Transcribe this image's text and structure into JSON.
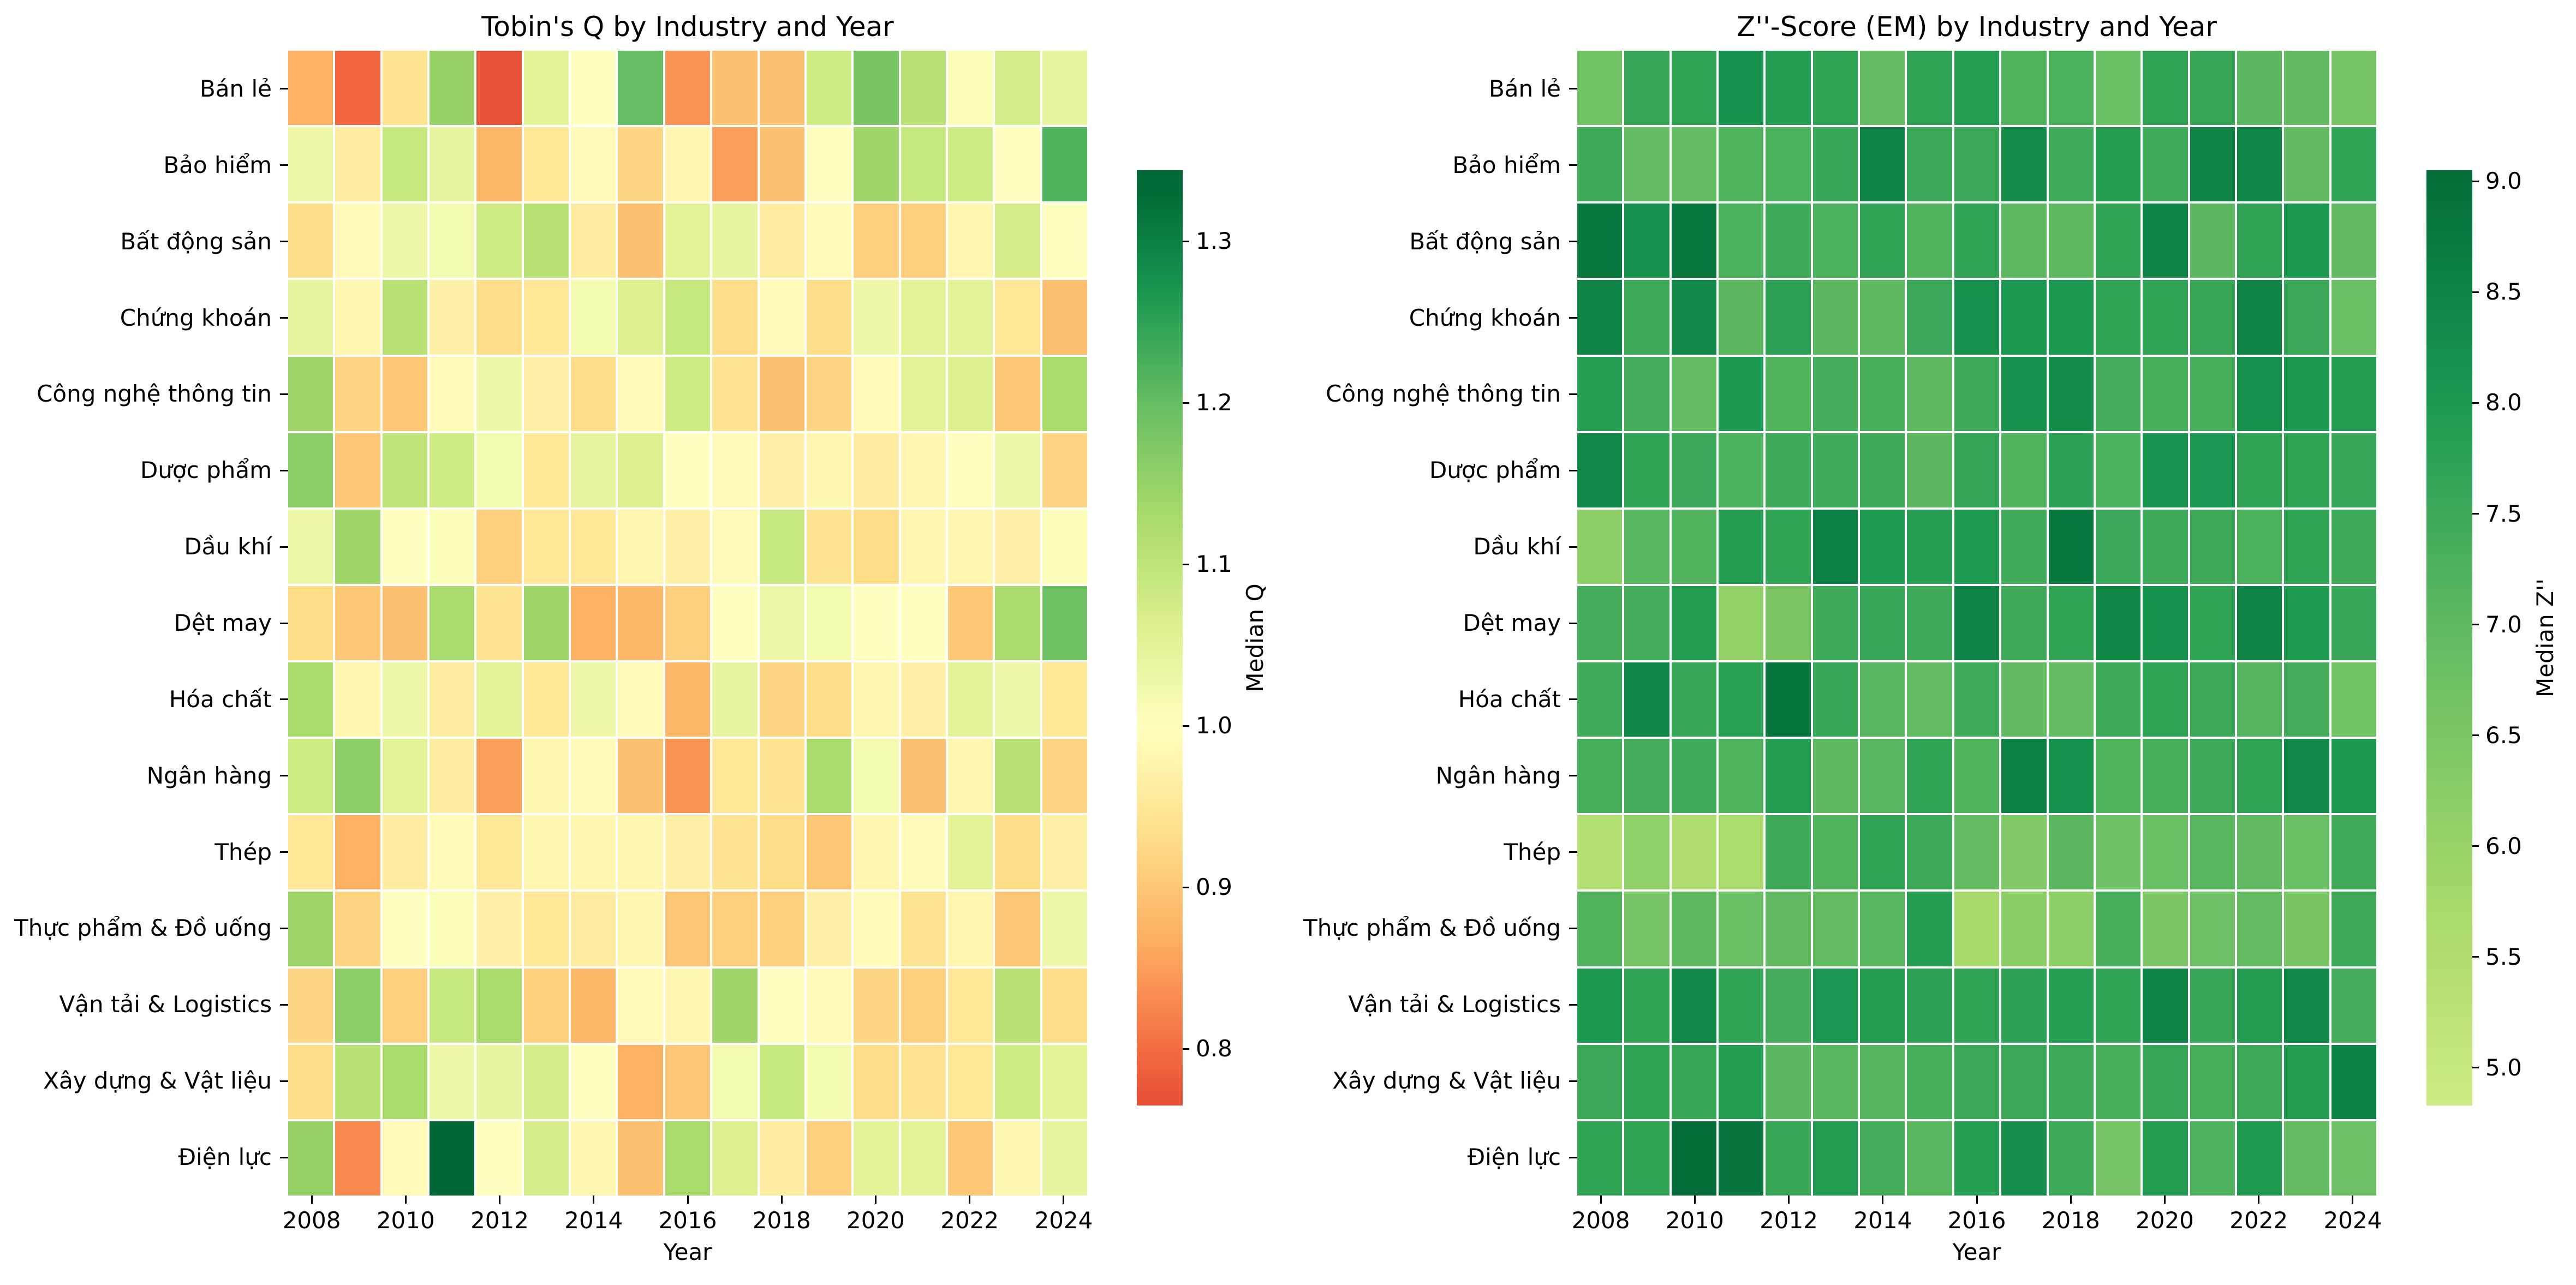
{
  "industries": [
    "Bán lẻ",
    "Bảo hiểm",
    "Bất động sản",
    "Chứng khoán",
    "Công nghệ thông tin",
    "Dược phẩm",
    "Dầu khí",
    "Dệt may",
    "Hóa chất",
    "Ngân hàng",
    "Thép",
    "Thực phẩm & Đồ uống",
    "Vận tải & Logistics",
    "Xây dựng & Vật liệu",
    "Điện lực"
  ],
  "years": [
    "2008",
    "2009",
    "2010",
    "2011",
    "2012",
    "2013",
    "2014",
    "2015",
    "2016",
    "2017",
    "2018",
    "2019",
    "2020",
    "2021",
    "2022",
    "2023",
    "2024"
  ],
  "palette": {
    "rdylgn": [
      "#a50026",
      "#d73027",
      "#f46d43",
      "#fdae61",
      "#fee08b",
      "#ffffbf",
      "#d9ef8b",
      "#a6d96a",
      "#66bd63",
      "#1a9850",
      "#006837"
    ],
    "cell_gap_color": "#ffffff",
    "text_color": "#000000"
  },
  "chart_data": [
    {
      "type": "heatmap",
      "title": "Tobin's Q by Industry and Year",
      "xlabel": "Year",
      "colorbar_label": "Median Q",
      "colormap": "RdYlGn",
      "grid": false,
      "legend_position": "right-colorbar",
      "vmin": 0.765,
      "vmax": 1.344,
      "color_mapping": {
        "ref_value": 1.0,
        "t_ref": 0.5,
        "t_per_unit": 1.5
      },
      "colorbar_ticks": [
        "0.8",
        "0.9",
        "1.0",
        "1.1",
        "1.2",
        "1.3"
      ],
      "x_ticks": [
        "2008",
        "2010",
        "2012",
        "2014",
        "2016",
        "2018",
        "2020",
        "2022",
        "2024"
      ],
      "rows": [
        "Bán lẻ",
        "Bảo hiểm",
        "Bất động sản",
        "Chứng khoán",
        "Công nghệ thông tin",
        "Dược phẩm",
        "Dầu khí",
        "Dệt may",
        "Hóa chất",
        "Ngân hàng",
        "Thép",
        "Thực phẩm & Đồ uống",
        "Vận tải & Logistics",
        "Xây dựng & Vật liệu",
        "Điện lực"
      ],
      "columns": [
        "2008",
        "2009",
        "2010",
        "2011",
        "2012",
        "2013",
        "2014",
        "2015",
        "2016",
        "2017",
        "2018",
        "2019",
        "2020",
        "2021",
        "2022",
        "2023",
        "2024"
      ],
      "values": [
        [
          0.87,
          0.79,
          0.94,
          1.15,
          0.77,
          1.05,
          1.0,
          1.2,
          0.84,
          0.89,
          0.89,
          1.08,
          1.18,
          1.11,
          1.01,
          1.07,
          1.04
        ],
        [
          1.03,
          0.96,
          1.09,
          1.04,
          0.88,
          0.95,
          0.99,
          0.92,
          0.98,
          0.85,
          0.89,
          1.0,
          1.14,
          1.09,
          1.08,
          1.0,
          1.22
        ],
        [
          0.93,
          0.99,
          1.03,
          1.02,
          1.08,
          1.11,
          0.96,
          0.89,
          1.05,
          1.04,
          0.96,
          0.99,
          0.91,
          0.91,
          0.98,
          1.07,
          1.0
        ],
        [
          1.04,
          0.98,
          1.11,
          0.97,
          0.93,
          0.95,
          1.02,
          1.06,
          1.09,
          0.93,
          0.99,
          0.93,
          1.03,
          1.05,
          1.05,
          0.95,
          0.89
        ],
        [
          1.14,
          0.92,
          0.9,
          0.99,
          1.03,
          0.97,
          0.93,
          0.99,
          1.08,
          0.94,
          0.89,
          0.92,
          0.99,
          1.05,
          1.06,
          0.9,
          1.13
        ],
        [
          1.16,
          0.9,
          1.1,
          1.08,
          1.02,
          0.95,
          1.04,
          1.06,
          1.0,
          0.99,
          0.97,
          0.98,
          0.96,
          0.98,
          1.0,
          1.03,
          0.92
        ],
        [
          1.03,
          1.14,
          1.0,
          1.01,
          0.91,
          0.95,
          0.95,
          0.98,
          0.97,
          0.99,
          1.09,
          0.94,
          0.93,
          0.98,
          0.98,
          0.97,
          1.01
        ],
        [
          0.93,
          0.9,
          0.89,
          1.13,
          0.94,
          1.14,
          0.87,
          0.88,
          0.91,
          1.0,
          1.03,
          1.02,
          1.0,
          1.0,
          0.9,
          1.13,
          1.19
        ],
        [
          1.13,
          0.98,
          1.03,
          0.96,
          1.05,
          0.95,
          1.03,
          0.99,
          0.88,
          1.04,
          0.92,
          0.93,
          0.98,
          0.97,
          1.05,
          1.03,
          0.95
        ],
        [
          1.08,
          1.16,
          1.05,
          0.96,
          0.85,
          0.98,
          0.99,
          0.89,
          0.84,
          0.95,
          0.94,
          1.13,
          1.02,
          0.89,
          0.98,
          1.11,
          0.92
        ],
        [
          0.95,
          0.87,
          0.96,
          0.99,
          0.95,
          0.98,
          0.98,
          0.98,
          0.97,
          0.94,
          0.93,
          0.9,
          0.98,
          0.99,
          1.05,
          0.93,
          0.97
        ],
        [
          1.14,
          0.92,
          1.0,
          1.01,
          0.97,
          0.95,
          0.96,
          0.98,
          0.9,
          0.91,
          0.91,
          0.97,
          0.99,
          0.94,
          0.98,
          0.9,
          1.03
        ],
        [
          0.92,
          1.16,
          0.91,
          1.09,
          1.13,
          0.91,
          0.88,
          0.99,
          0.98,
          1.14,
          1.0,
          0.99,
          0.92,
          0.91,
          0.95,
          1.11,
          0.93
        ],
        [
          0.93,
          1.11,
          1.13,
          1.03,
          1.04,
          1.07,
          1.0,
          0.87,
          0.9,
          1.02,
          1.09,
          1.02,
          0.93,
          0.94,
          0.95,
          1.08,
          1.05
        ],
        [
          1.15,
          0.83,
          0.99,
          1.34,
          1.0,
          1.07,
          0.98,
          0.89,
          1.13,
          1.06,
          0.96,
          0.91,
          1.05,
          1.05,
          0.9,
          0.98,
          1.04
        ]
      ]
    },
    {
      "type": "heatmap",
      "title": "Z''-Score (EM) by Industry and Year",
      "xlabel": "Year",
      "colorbar_label": "Median Z''",
      "colormap": "RdYlGn",
      "grid": false,
      "legend_position": "right-colorbar",
      "vmin": 4.83,
      "vmax": 9.05,
      "color_mapping": {
        "ref_value": 5.0,
        "t_ref": 0.635,
        "t_per_unit": 0.0875
      },
      "colorbar_ticks": [
        "5.0",
        "5.5",
        "6.0",
        "6.5",
        "7.0",
        "7.5",
        "8.0",
        "8.5",
        "9.0"
      ],
      "x_ticks": [
        "2008",
        "2010",
        "2012",
        "2014",
        "2016",
        "2018",
        "2020",
        "2022",
        "2024"
      ],
      "rows": [
        "Bán lẻ",
        "Bảo hiểm",
        "Bất động sản",
        "Chứng khoán",
        "Công nghệ thông tin",
        "Dược phẩm",
        "Dầu khí",
        "Dệt may",
        "Hóa chất",
        "Ngân hàng",
        "Thép",
        "Thực phẩm & Đồ uống",
        "Vận tải & Logistics",
        "Xây dựng & Vật liệu",
        "Điện lực"
      ],
      "columns": [
        "2008",
        "2009",
        "2010",
        "2011",
        "2012",
        "2013",
        "2014",
        "2015",
        "2016",
        "2017",
        "2018",
        "2019",
        "2020",
        "2021",
        "2022",
        "2023",
        "2024"
      ],
      "values": [
        [
          6.7,
          7.6,
          7.7,
          8.2,
          7.9,
          7.7,
          6.9,
          7.7,
          7.85,
          7.2,
          7.3,
          6.8,
          7.7,
          7.6,
          7.05,
          6.95,
          6.6
        ],
        [
          7.5,
          6.9,
          6.9,
          7.2,
          7.3,
          7.6,
          8.5,
          7.55,
          7.55,
          8.35,
          7.45,
          7.9,
          7.45,
          8.5,
          8.45,
          6.95,
          7.7
        ],
        [
          8.8,
          8.2,
          8.8,
          7.3,
          7.5,
          7.3,
          7.7,
          7.2,
          7.7,
          7.0,
          7.0,
          7.7,
          8.5,
          7.05,
          7.7,
          8.0,
          6.95
        ],
        [
          8.5,
          7.5,
          8.4,
          7.05,
          7.75,
          7.05,
          7.0,
          7.55,
          8.2,
          8.0,
          8.0,
          7.7,
          7.7,
          7.6,
          8.5,
          7.55,
          6.8
        ],
        [
          7.85,
          7.4,
          6.9,
          8.0,
          7.2,
          7.4,
          7.35,
          7.0,
          7.5,
          8.2,
          8.3,
          7.4,
          7.35,
          7.35,
          8.2,
          8.0,
          7.9
        ],
        [
          8.4,
          7.7,
          7.55,
          7.3,
          7.5,
          7.45,
          7.5,
          7.05,
          7.65,
          7.2,
          7.75,
          7.3,
          8.15,
          8.05,
          7.7,
          7.7,
          7.6
        ],
        [
          6.2,
          7.1,
          7.2,
          7.9,
          7.7,
          8.55,
          7.95,
          7.85,
          7.95,
          7.45,
          8.8,
          7.55,
          7.5,
          7.5,
          7.3,
          7.7,
          7.5
        ],
        [
          7.4,
          7.4,
          7.9,
          6.1,
          6.5,
          7.5,
          7.6,
          7.5,
          8.5,
          7.5,
          7.7,
          8.45,
          8.2,
          7.7,
          8.5,
          7.95,
          7.6
        ],
        [
          7.45,
          8.45,
          7.6,
          7.8,
          8.85,
          7.6,
          7.1,
          6.9,
          7.45,
          6.95,
          6.9,
          7.5,
          7.7,
          7.5,
          7.15,
          7.4,
          6.7
        ],
        [
          7.35,
          7.4,
          7.45,
          7.2,
          7.9,
          7.0,
          7.1,
          7.7,
          7.2,
          8.6,
          8.2,
          7.2,
          7.35,
          7.5,
          7.7,
          8.4,
          8.0
        ],
        [
          5.4,
          6.15,
          5.45,
          5.6,
          7.5,
          7.2,
          7.7,
          7.5,
          6.9,
          6.4,
          7.05,
          6.75,
          6.8,
          7.1,
          6.95,
          6.8,
          7.45
        ],
        [
          7.2,
          6.6,
          7.0,
          6.8,
          6.95,
          6.9,
          7.1,
          7.9,
          5.7,
          6.25,
          6.2,
          7.35,
          6.5,
          6.75,
          6.9,
          6.55,
          7.5
        ],
        [
          8.0,
          7.7,
          8.4,
          7.7,
          7.4,
          8.05,
          7.9,
          7.75,
          7.7,
          7.75,
          7.85,
          7.7,
          8.5,
          7.6,
          7.9,
          8.4,
          7.4
        ],
        [
          7.55,
          7.7,
          7.6,
          7.9,
          7.05,
          7.1,
          7.15,
          7.35,
          7.55,
          7.55,
          7.5,
          7.35,
          7.6,
          7.35,
          7.5,
          7.9,
          8.55
        ],
        [
          7.7,
          7.7,
          9.05,
          8.9,
          7.6,
          7.9,
          7.4,
          7.1,
          7.85,
          8.25,
          7.5,
          6.6,
          7.9,
          7.25,
          7.95,
          6.9,
          6.75
        ]
      ]
    }
  ]
}
